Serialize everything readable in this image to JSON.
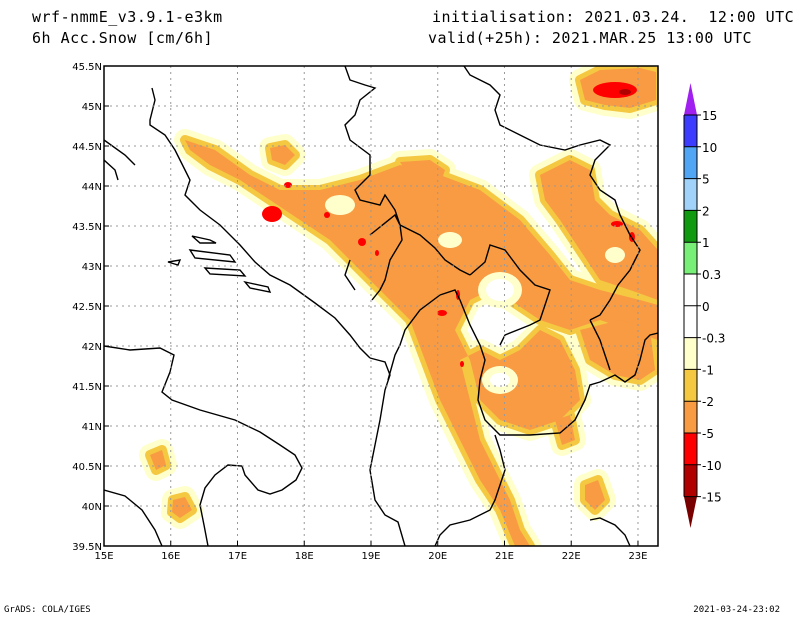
{
  "header": {
    "model": "wrf-nmmE_v3.9.1-e3km",
    "field": "6h Acc.Snow [cm/6h]",
    "init": "initialisation: 2021.03.24.  12:00 UTC",
    "valid": "valid(+25h): 2021.MAR.25 13:00 UTC"
  },
  "map": {
    "lon_range": [
      15,
      23.3
    ],
    "lat_range": [
      39.5,
      45.5
    ],
    "lon_ticks": [
      {
        "v": 15,
        "label": "15E"
      },
      {
        "v": 16,
        "label": "16E"
      },
      {
        "v": 17,
        "label": "17E"
      },
      {
        "v": 18,
        "label": "18E"
      },
      {
        "v": 19,
        "label": "19E"
      },
      {
        "v": 20,
        "label": "20E"
      },
      {
        "v": 21,
        "label": "21E"
      },
      {
        "v": 22,
        "label": "22E"
      },
      {
        "v": 23,
        "label": "23E"
      }
    ],
    "lat_ticks": [
      {
        "v": 45.5,
        "label": "45.5N"
      },
      {
        "v": 45,
        "label": "45N"
      },
      {
        "v": 44.5,
        "label": "44.5N"
      },
      {
        "v": 44,
        "label": "44N"
      },
      {
        "v": 43.5,
        "label": "43.5N"
      },
      {
        "v": 43,
        "label": "43N"
      },
      {
        "v": 42.5,
        "label": "42.5N"
      },
      {
        "v": 42,
        "label": "42N"
      },
      {
        "v": 41.5,
        "label": "41.5N"
      },
      {
        "v": 41,
        "label": "41N"
      },
      {
        "v": 40.5,
        "label": "40.5N"
      },
      {
        "v": 40,
        "label": "40N"
      },
      {
        "v": 39.5,
        "label": "39.5N"
      }
    ]
  },
  "colorbar": {
    "labels": [
      "15",
      "10",
      "5",
      "2",
      "1",
      "0.3",
      "0",
      "-0.3",
      "-1",
      "-2",
      "-5",
      "-10",
      "-15"
    ],
    "colors": [
      "#a020f0",
      "#3c3cff",
      "#50a5f5",
      "#a0d2fa",
      "#109a10",
      "#78f078",
      "#ffffff",
      "#ffffff",
      "#ffffcc",
      "#f5c842",
      "#f89b42",
      "#ff0000",
      "#b00000",
      "#780000"
    ]
  },
  "footer": {
    "left": "GrADS: COLA/IGES",
    "right": "2021-03-24-23:02"
  }
}
